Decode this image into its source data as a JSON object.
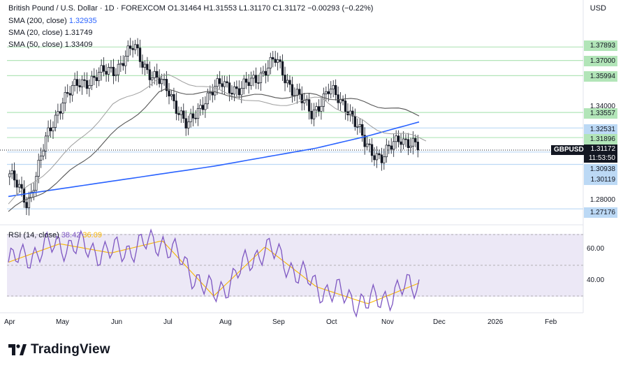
{
  "header": {
    "symbol_title": "British Pound / U.S. Dollar · 1D · FOREXCOM",
    "ohlc": "O1.31464  H1.31553  L1.31170  C1.31172  −0.00293 (−0.22%)",
    "currency": "USD"
  },
  "indicators": {
    "sma200_label": "SMA (200, close)",
    "sma200_value": "1.32935",
    "sma20_label": "SMA (20, close)",
    "sma20_value": "1.31749",
    "sma50_label": "SMA (50, close)",
    "sma50_value": "1.33409"
  },
  "rsi": {
    "label": "RSI (14, close)",
    "value": "38.42",
    "ma_value": "36.09",
    "levels": [
      "60.00",
      "40.00"
    ]
  },
  "price_axis": {
    "plain_ticks": [
      "1.34000",
      "1.28000"
    ],
    "green_labels": [
      "1.37893",
      "1.37000",
      "1.35994",
      "1.33557",
      "1.31896"
    ],
    "blue_labels": [
      "1.32531",
      "1.30938",
      "1.30119",
      "1.27176"
    ],
    "symbol": "GBPUSD",
    "last_price": "1.31172",
    "countdown": "11:53:50"
  },
  "time_axis": [
    "Apr",
    "May",
    "Jun",
    "Jul",
    "Aug",
    "Sep",
    "Oct",
    "Nov",
    "Dec",
    "2026",
    "Feb"
  ],
  "brand": {
    "name": "TradingView"
  },
  "colors": {
    "sma200": "#2962ff",
    "sma20": "#9e9e9e",
    "sma50": "#555555",
    "rsi": "#7e57c2",
    "rsi_ma": "#f7b500",
    "support_green": "#b2e5b8",
    "support_blue": "#bcd9f5"
  },
  "chart_data": {
    "type": "candlestick",
    "series": [
      {
        "name": "SMA (200, close)",
        "values": [
          1.28,
          1.285,
          1.29,
          1.295,
          1.3,
          1.306,
          1.312,
          1.32,
          1.3293
        ]
      },
      {
        "name": "SMA (20, close)",
        "values": [
          1.275,
          1.305,
          1.34,
          1.36,
          1.35,
          1.34,
          1.345,
          1.325,
          1.3175
        ]
      },
      {
        "name": "SMA (50, close)",
        "values": [
          1.27,
          1.29,
          1.32,
          1.35,
          1.348,
          1.346,
          1.347,
          1.342,
          1.3341
        ]
      },
      {
        "name": "RSI (14, close)",
        "values": [
          52,
          64,
          58,
          66,
          30,
          62,
          36,
          25,
          38.42
        ]
      }
    ],
    "close_path": [
      1.295,
      1.275,
      1.315,
      1.345,
      1.355,
      1.36,
      1.365,
      1.3789,
      1.36,
      1.35,
      1.325,
      1.345,
      1.355,
      1.35,
      1.36,
      1.37,
      1.35,
      1.335,
      1.35,
      1.34,
      1.315,
      1.305,
      1.32,
      1.3117
    ],
    "ylim": [
      1.27,
      1.38
    ]
  }
}
